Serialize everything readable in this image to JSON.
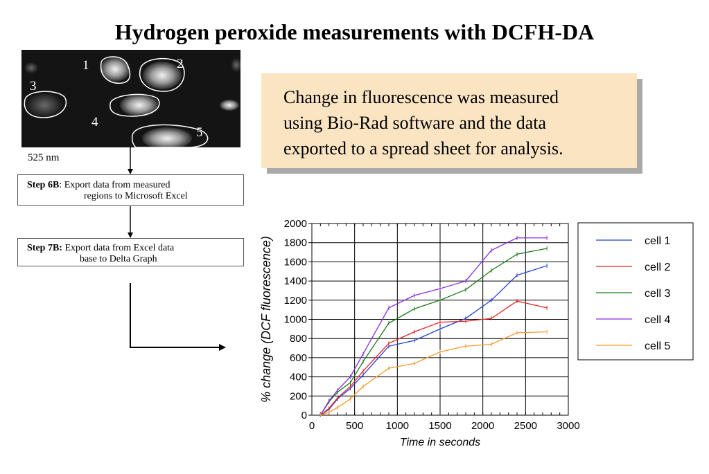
{
  "slide": {
    "title": "Hydrogen peroxide measurements with DCFH-DA",
    "image": {
      "region_labels": [
        "1",
        "2",
        "3",
        "4",
        "5"
      ],
      "wavelength_label": "525 nm"
    },
    "steps": [
      {
        "label": "Step 6B",
        "sep": ": ",
        "line1": "Export data from measured",
        "line2": "regions to Microsoft Excel"
      },
      {
        "label": "Step 7B:",
        "sep": " ",
        "line1": "Export data from Excel data",
        "line2": "base to Delta Graph"
      }
    ],
    "note_lines": [
      "Change in fluorescence was measured",
      "using Bio-Rad software and the data",
      "exported to a spread sheet for analysis."
    ]
  },
  "chart_data": {
    "type": "line",
    "title": "",
    "xlabel": "Time in seconds",
    "ylabel": "% change (DCF fluorescence)",
    "xlim": [
      0,
      3000
    ],
    "ylim": [
      0,
      2000
    ],
    "xticks": [
      0,
      500,
      1000,
      1500,
      2000,
      2500,
      3000
    ],
    "yticks": [
      0,
      200,
      400,
      600,
      800,
      1000,
      1200,
      1400,
      1600,
      1800,
      2000
    ],
    "grid": true,
    "legend_position": "right",
    "series": [
      {
        "name": "cell 1",
        "color": "#1f3fd0",
        "x": [
          100,
          200,
          300,
          450,
          600,
          900,
          1200,
          1500,
          1800,
          2100,
          2400,
          2750
        ],
        "y": [
          0,
          60,
          170,
          280,
          420,
          720,
          780,
          900,
          1010,
          1200,
          1460,
          1560
        ]
      },
      {
        "name": "cell 2",
        "color": "#e8211f",
        "x": [
          100,
          200,
          300,
          450,
          600,
          900,
          1200,
          1500,
          1800,
          2100,
          2400,
          2750
        ],
        "y": [
          0,
          70,
          180,
          300,
          460,
          750,
          870,
          970,
          980,
          1010,
          1190,
          1120
        ]
      },
      {
        "name": "cell 3",
        "color": "#1a7a1a",
        "x": [
          100,
          200,
          300,
          450,
          600,
          900,
          1200,
          1500,
          1800,
          2100,
          2400,
          2750
        ],
        "y": [
          0,
          140,
          240,
          340,
          560,
          960,
          1110,
          1200,
          1310,
          1510,
          1680,
          1740
        ]
      },
      {
        "name": "cell 4",
        "color": "#8a2be2",
        "x": [
          100,
          200,
          300,
          450,
          600,
          900,
          1200,
          1500,
          1800,
          2100,
          2400,
          2750
        ],
        "y": [
          0,
          150,
          260,
          400,
          640,
          1120,
          1250,
          1320,
          1400,
          1720,
          1850,
          1850
        ]
      },
      {
        "name": "cell 5",
        "color": "#f39a2a",
        "x": [
          100,
          200,
          300,
          450,
          600,
          900,
          1200,
          1500,
          1800,
          2100,
          2400,
          2750
        ],
        "y": [
          0,
          30,
          80,
          170,
          300,
          490,
          540,
          660,
          720,
          740,
          860,
          870
        ]
      }
    ]
  }
}
